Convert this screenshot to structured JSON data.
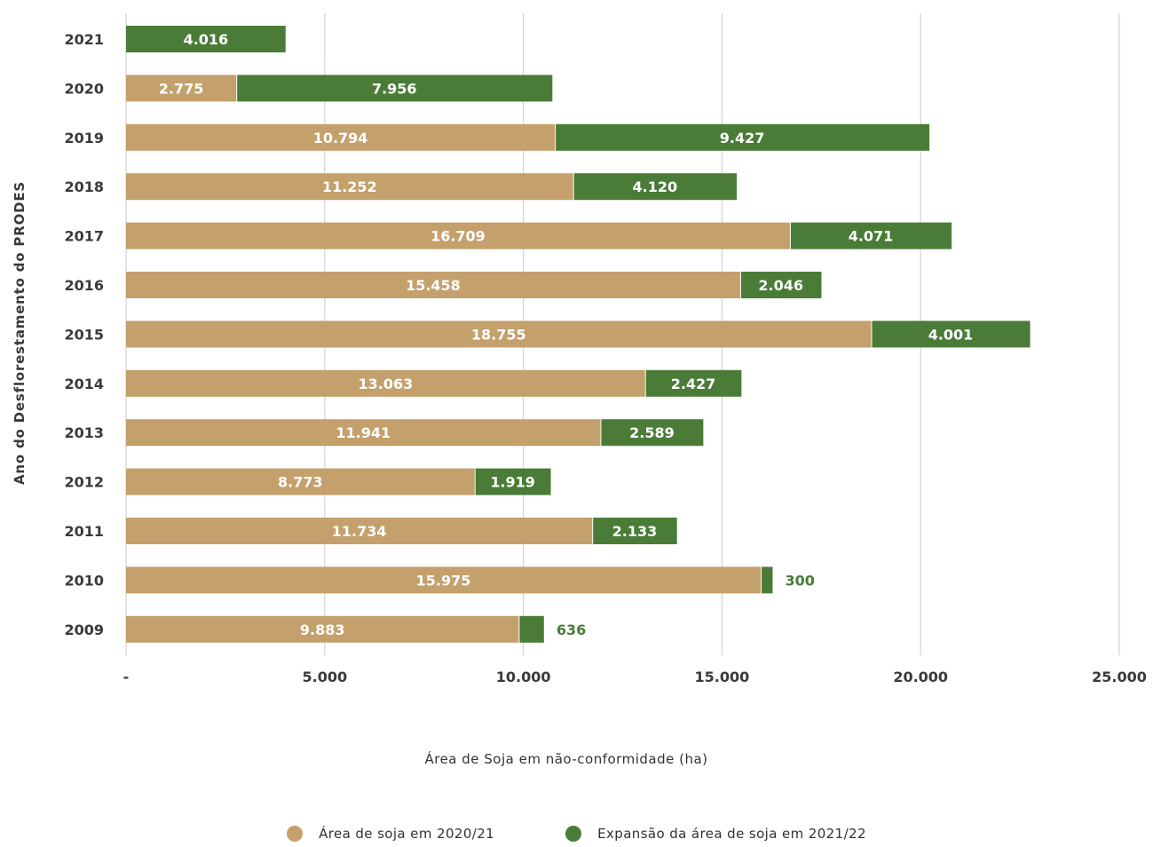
{
  "chart_data": {
    "type": "bar",
    "orientation": "horizontal",
    "stacked": true,
    "title": "",
    "xlabel": "Área de Soja em não-conformidade (ha)",
    "ylabel": "Ano do Desflorestamento do PRODES",
    "xlim": [
      0,
      25000
    ],
    "xticks": [
      0,
      5000,
      10000,
      15000,
      20000,
      25000
    ],
    "xtick_labels": [
      "-",
      "5.000",
      "10.000",
      "15.000",
      "20.000",
      "25.000"
    ],
    "grid": "vertical",
    "legend_position": "bottom",
    "categories": [
      "2021",
      "2020",
      "2019",
      "2018",
      "2017",
      "2016",
      "2015",
      "2014",
      "2013",
      "2012",
      "2011",
      "2010",
      "2009"
    ],
    "series": [
      {
        "name": "Área de soja em 2020/21",
        "color": "#c4a06c",
        "values": [
          0,
          2775,
          10794,
          11252,
          16709,
          15458,
          18755,
          13063,
          11941,
          8773,
          11734,
          15975,
          9883
        ],
        "labels": [
          "",
          "2.775",
          "10.794",
          "11.252",
          "16.709",
          "15.458",
          "18.755",
          "13.063",
          "11.941",
          "8.773",
          "11.734",
          "15.975",
          "9.883"
        ]
      },
      {
        "name": "Expansão da área de soja em 2021/22",
        "color": "#4a7c38",
        "values": [
          4016,
          7956,
          9427,
          4120,
          4071,
          2046,
          4001,
          2427,
          2589,
          1919,
          2133,
          300,
          636
        ],
        "labels": [
          "4.016",
          "7.956",
          "9.427",
          "4.120",
          "4.071",
          "2.046",
          "4.001",
          "2.427",
          "2.589",
          "1.919",
          "2.133",
          "300",
          "636"
        ]
      }
    ]
  }
}
